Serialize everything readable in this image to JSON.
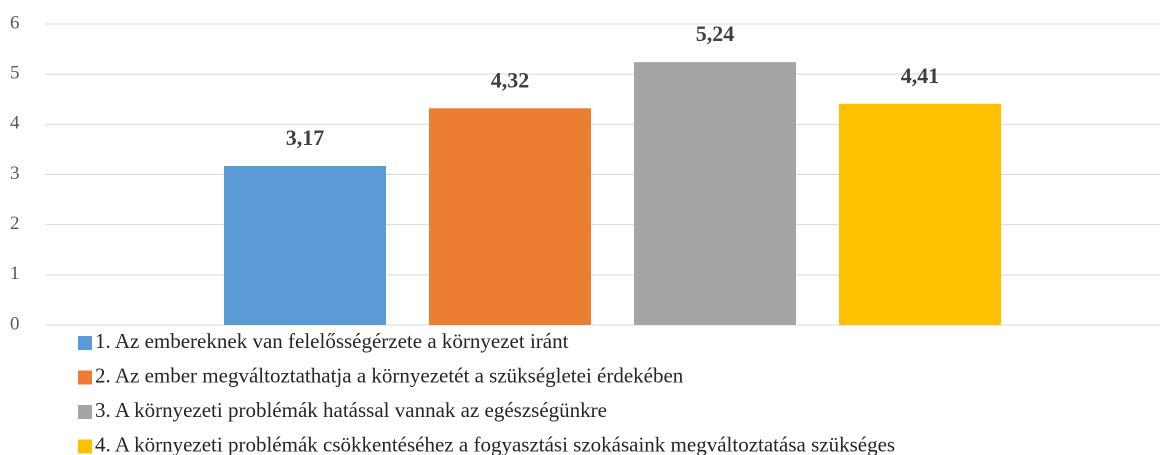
{
  "chart_data": {
    "type": "bar",
    "categories": [
      null
    ],
    "series": [
      {
        "name": "1. Az embereknek van felelősségérzete a környezet iránt",
        "color": "#5b9bd5",
        "values": [
          3.17
        ],
        "value_labels": [
          "3,17"
        ]
      },
      {
        "name": "2. Az ember megváltoztathatja a környezetét a szükségletei érdekében",
        "color": "#ed7d31",
        "values": [
          4.32
        ],
        "value_labels": [
          "4,32"
        ]
      },
      {
        "name": "3. A környezeti problémák hatással vannak az egészségünkre",
        "color": "#a5a5a5",
        "values": [
          5.24
        ],
        "value_labels": [
          "5,24"
        ]
      },
      {
        "name": "4. A környezeti problémák csökkentéséhez a fogyasztási szokásaink megváltoztatása szükséges",
        "color": "#ffc000",
        "values": [
          4.41
        ],
        "value_labels": [
          "4,41"
        ]
      }
    ],
    "ylim": [
      0,
      6
    ],
    "yticks": [
      0,
      1,
      2,
      3,
      4,
      5,
      6
    ],
    "grid": true,
    "legend": "bottom"
  }
}
